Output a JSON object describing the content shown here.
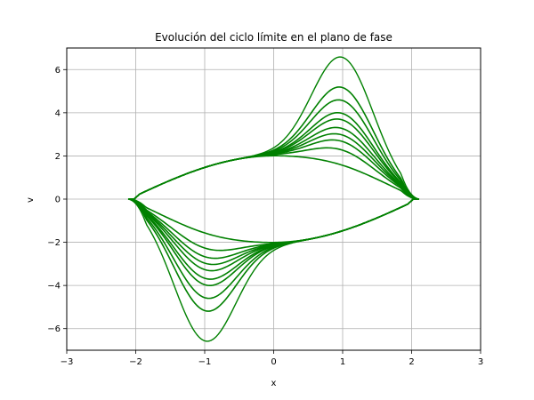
{
  "chart_data": {
    "type": "line",
    "title": "Evolución del ciclo límite en el plano de fase",
    "xlabel": "x",
    "ylabel": "v",
    "xlim": [
      -3,
      3
    ],
    "ylim": [
      -7,
      7
    ],
    "xticks": [
      -3,
      -2,
      -1,
      0,
      1,
      2,
      3
    ],
    "yticks": [
      -6,
      -4,
      -2,
      0,
      2,
      4,
      6
    ],
    "x_tick_labels": [
      "−3",
      "−2",
      "−1",
      "0",
      "1",
      "2",
      "3"
    ],
    "y_tick_labels": [
      "−6",
      "−4",
      "−2",
      "0",
      "2",
      "4",
      "6"
    ],
    "grid": true,
    "legend": "none",
    "series_color": "#008000",
    "trajectory": {
      "description_values": "phase-plane trajectories of a self-oscillator; each closed loop passes through a turning point near x = 2 (v ≈ 0) and x = -2 (v ≈ 0)",
      "loop_peaks": [
        7.1,
        5.7,
        5.1,
        4.5,
        4.2,
        3.8,
        3.5,
        3.2,
        2.8,
        2.1
      ],
      "peak_x": 1.0,
      "trough_x": -1.0,
      "left_turn_x": -2.05,
      "right_turn_x": 2.1,
      "crossing_point": [
        0.0,
        2.0
      ]
    }
  },
  "colors": {
    "line": "#008000",
    "grid": "#b0b0b0",
    "axes": "#000000",
    "background": "#ffffff"
  }
}
